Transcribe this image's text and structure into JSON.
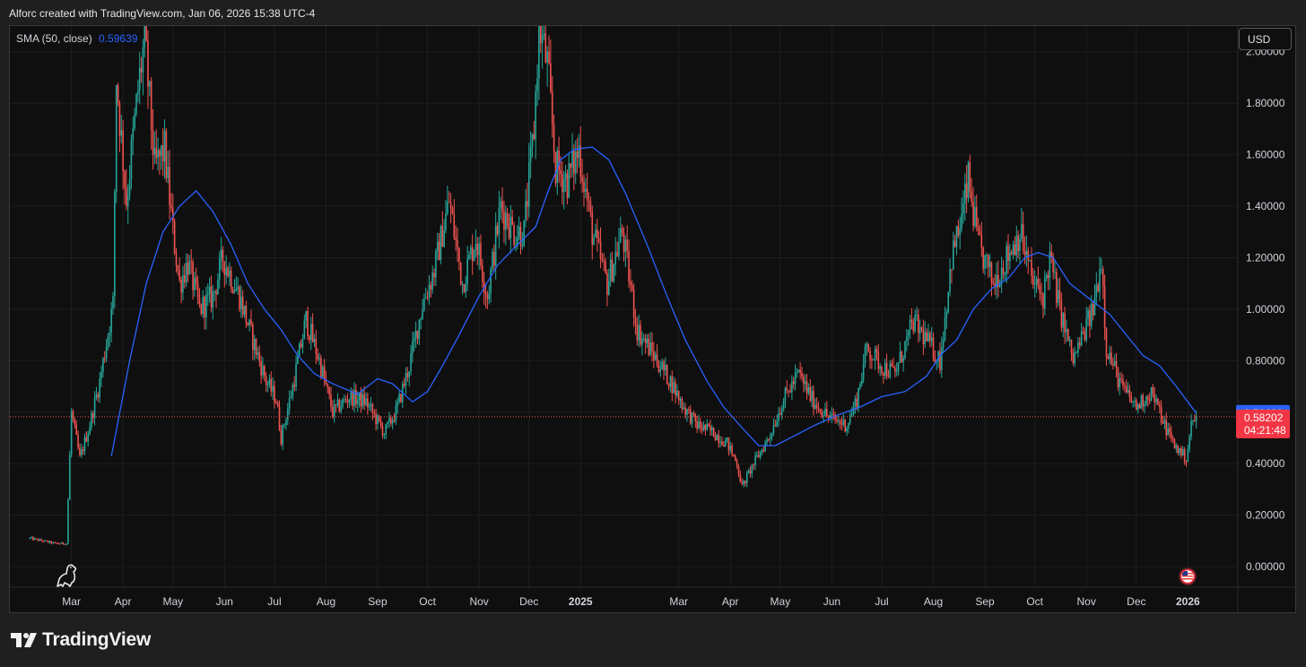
{
  "header": {
    "caption": "Alforc created with TradingView.com, Jan 06, 2026 15:38 UTC-4"
  },
  "legend": {
    "indicator": "SMA (50, close)",
    "value": "0.59639"
  },
  "currency_button": {
    "label": "USD"
  },
  "brand": {
    "name": "TradingView"
  },
  "colors": {
    "background": "#0f0f0f",
    "up_candle": "#26a69a",
    "down_candle": "#ef5350",
    "sma_line": "#2962ff",
    "price_line": "#ef5350",
    "grid": "#1e1e1e"
  },
  "chart_data": {
    "type": "line",
    "title": "",
    "indicator": "SMA (50, close)",
    "ylim": [
      -0.08,
      2.1
    ],
    "y_tick_labels": [
      "0.00000",
      "0.20000",
      "0.40000",
      "0.60000",
      "0.80000",
      "1.00000",
      "1.20000",
      "1.40000",
      "1.60000",
      "1.80000",
      "2.00000"
    ],
    "y_ticks": [
      0,
      0.2,
      0.4,
      0.6,
      0.8,
      1.0,
      1.2,
      1.4,
      1.6,
      1.8,
      2.0
    ],
    "x_tick_labels": [
      "Mar",
      "Apr",
      "May",
      "Jun",
      "Jul",
      "Aug",
      "Sep",
      "Oct",
      "Nov",
      "Dec",
      "2025",
      "Mar",
      "Apr",
      "May",
      "Jun",
      "Jul",
      "Aug",
      "Sep",
      "Oct",
      "Nov",
      "Dec",
      "2026"
    ],
    "x_tick_dates": [
      "2024-03-01",
      "2024-04-01",
      "2024-05-01",
      "2024-06-01",
      "2024-07-01",
      "2024-08-01",
      "2024-09-01",
      "2024-10-01",
      "2024-11-01",
      "2024-12-01",
      "2025-01-01",
      "2025-03-01",
      "2025-04-01",
      "2025-05-01",
      "2025-06-01",
      "2025-07-01",
      "2025-08-01",
      "2025-09-01",
      "2025-10-01",
      "2025-11-01",
      "2025-12-01",
      "2026-01-01"
    ],
    "x_range": [
      "2024-01-24",
      "2026-01-31"
    ],
    "grid": true,
    "price_series": {
      "name": "Price (close)",
      "points": [
        [
          "2024-02-05",
          0.11
        ],
        [
          "2024-02-20",
          0.09
        ],
        [
          "2024-02-27",
          0.09
        ],
        [
          "2024-03-01",
          0.6
        ],
        [
          "2024-03-06",
          0.42
        ],
        [
          "2024-03-12",
          0.55
        ],
        [
          "2024-03-18",
          0.72
        ],
        [
          "2024-03-26",
          1.02
        ],
        [
          "2024-03-28",
          1.9
        ],
        [
          "2024-04-03",
          1.42
        ],
        [
          "2024-04-10",
          1.85
        ],
        [
          "2024-04-14",
          2.05
        ],
        [
          "2024-04-20",
          1.55
        ],
        [
          "2024-04-26",
          1.62
        ],
        [
          "2024-05-01",
          1.3
        ],
        [
          "2024-05-05",
          1.1
        ],
        [
          "2024-05-10",
          1.18
        ],
        [
          "2024-05-17",
          1.0
        ],
        [
          "2024-05-25",
          1.05
        ],
        [
          "2024-05-31",
          1.2
        ],
        [
          "2024-06-10",
          1.05
        ],
        [
          "2024-06-18",
          0.88
        ],
        [
          "2024-06-26",
          0.72
        ],
        [
          "2024-07-02",
          0.65
        ],
        [
          "2024-07-05",
          0.5
        ],
        [
          "2024-07-12",
          0.7
        ],
        [
          "2024-07-20",
          0.96
        ],
        [
          "2024-07-28",
          0.8
        ],
        [
          "2024-08-05",
          0.6
        ],
        [
          "2024-08-15",
          0.66
        ],
        [
          "2024-08-25",
          0.64
        ],
        [
          "2024-09-05",
          0.52
        ],
        [
          "2024-09-12",
          0.6
        ],
        [
          "2024-09-20",
          0.78
        ],
        [
          "2024-09-28",
          1.02
        ],
        [
          "2024-10-05",
          1.15
        ],
        [
          "2024-10-14",
          1.42
        ],
        [
          "2024-10-22",
          1.1
        ],
        [
          "2024-10-30",
          1.28
        ],
        [
          "2024-11-06",
          1.05
        ],
        [
          "2024-11-14",
          1.4
        ],
        [
          "2024-11-22",
          1.3
        ],
        [
          "2024-11-28",
          1.3
        ],
        [
          "2024-12-04",
          1.7
        ],
        [
          "2024-12-07",
          2.1
        ],
        [
          "2024-12-12",
          1.95
        ],
        [
          "2024-12-17",
          1.55
        ],
        [
          "2024-12-24",
          1.5
        ],
        [
          "2024-12-31",
          1.62
        ],
        [
          "2025-01-08",
          1.3
        ],
        [
          "2025-01-17",
          1.1
        ],
        [
          "2025-01-26",
          1.3
        ],
        [
          "2025-02-04",
          0.92
        ],
        [
          "2025-02-14",
          0.82
        ],
        [
          "2025-02-24",
          0.72
        ],
        [
          "2025-03-04",
          0.62
        ],
        [
          "2025-03-12",
          0.55
        ],
        [
          "2025-03-22",
          0.52
        ],
        [
          "2025-03-30",
          0.48
        ],
        [
          "2025-04-05",
          0.4
        ],
        [
          "2025-04-08",
          0.31
        ],
        [
          "2025-04-15",
          0.4
        ],
        [
          "2025-04-24",
          0.5
        ],
        [
          "2025-05-03",
          0.65
        ],
        [
          "2025-05-12",
          0.75
        ],
        [
          "2025-05-20",
          0.65
        ],
        [
          "2025-05-30",
          0.58
        ],
        [
          "2025-06-10",
          0.55
        ],
        [
          "2025-06-16",
          0.65
        ],
        [
          "2025-06-22",
          0.85
        ],
        [
          "2025-07-01",
          0.78
        ],
        [
          "2025-07-09",
          0.75
        ],
        [
          "2025-07-20",
          0.95
        ],
        [
          "2025-07-28",
          0.88
        ],
        [
          "2025-08-05",
          0.8
        ],
        [
          "2025-08-12",
          1.2
        ],
        [
          "2025-08-18",
          1.35
        ],
        [
          "2025-08-22",
          1.5
        ],
        [
          "2025-08-28",
          1.25
        ],
        [
          "2025-09-06",
          1.1
        ],
        [
          "2025-09-14",
          1.2
        ],
        [
          "2025-09-22",
          1.3
        ],
        [
          "2025-09-30",
          1.1
        ],
        [
          "2025-10-06",
          1.05
        ],
        [
          "2025-10-10",
          1.2
        ],
        [
          "2025-10-16",
          1.0
        ],
        [
          "2025-10-24",
          0.8
        ],
        [
          "2025-10-30",
          0.9
        ],
        [
          "2025-11-05",
          1.0
        ],
        [
          "2025-11-10",
          1.2
        ],
        [
          "2025-11-13",
          0.85
        ],
        [
          "2025-11-22",
          0.7
        ],
        [
          "2025-12-01",
          0.62
        ],
        [
          "2025-12-10",
          0.68
        ],
        [
          "2025-12-18",
          0.55
        ],
        [
          "2025-12-24",
          0.47
        ],
        [
          "2025-12-31",
          0.42
        ],
        [
          "2026-01-03",
          0.55
        ],
        [
          "2026-01-06",
          0.58202
        ]
      ]
    },
    "series": [
      {
        "name": "SMA (50, close)",
        "points": [
          [
            "2024-03-25",
            0.43
          ],
          [
            "2024-04-05",
            0.8
          ],
          [
            "2024-04-15",
            1.1
          ],
          [
            "2024-04-25",
            1.3
          ],
          [
            "2024-05-05",
            1.4
          ],
          [
            "2024-05-15",
            1.46
          ],
          [
            "2024-05-25",
            1.38
          ],
          [
            "2024-06-05",
            1.25
          ],
          [
            "2024-06-15",
            1.1
          ],
          [
            "2024-06-25",
            1.0
          ],
          [
            "2024-07-05",
            0.92
          ],
          [
            "2024-07-15",
            0.82
          ],
          [
            "2024-07-25",
            0.75
          ],
          [
            "2024-08-05",
            0.71
          ],
          [
            "2024-08-20",
            0.67
          ],
          [
            "2024-09-01",
            0.73
          ],
          [
            "2024-09-10",
            0.71
          ],
          [
            "2024-09-22",
            0.64
          ],
          [
            "2024-10-01",
            0.68
          ],
          [
            "2024-10-10",
            0.78
          ],
          [
            "2024-10-20",
            0.9
          ],
          [
            "2024-11-01",
            1.05
          ],
          [
            "2024-11-12",
            1.17
          ],
          [
            "2024-11-24",
            1.25
          ],
          [
            "2024-12-05",
            1.32
          ],
          [
            "2024-12-12",
            1.45
          ],
          [
            "2024-12-20",
            1.58
          ],
          [
            "2024-12-28",
            1.62
          ],
          [
            "2025-01-08",
            1.63
          ],
          [
            "2025-01-18",
            1.58
          ],
          [
            "2025-01-28",
            1.45
          ],
          [
            "2025-02-10",
            1.25
          ],
          [
            "2025-02-22",
            1.05
          ],
          [
            "2025-03-05",
            0.88
          ],
          [
            "2025-03-18",
            0.72
          ],
          [
            "2025-03-28",
            0.62
          ],
          [
            "2025-04-08",
            0.54
          ],
          [
            "2025-04-18",
            0.47
          ],
          [
            "2025-04-28",
            0.47
          ],
          [
            "2025-05-10",
            0.51
          ],
          [
            "2025-05-22",
            0.55
          ],
          [
            "2025-06-05",
            0.59
          ],
          [
            "2025-06-18",
            0.62
          ],
          [
            "2025-07-01",
            0.66
          ],
          [
            "2025-07-15",
            0.68
          ],
          [
            "2025-07-28",
            0.74
          ],
          [
            "2025-08-05",
            0.82
          ],
          [
            "2025-08-15",
            0.88
          ],
          [
            "2025-08-25",
            1.0
          ],
          [
            "2025-09-05",
            1.08
          ],
          [
            "2025-09-15",
            1.12
          ],
          [
            "2025-09-25",
            1.2
          ],
          [
            "2025-10-03",
            1.22
          ],
          [
            "2025-10-12",
            1.2
          ],
          [
            "2025-10-22",
            1.1
          ],
          [
            "2025-11-05",
            1.03
          ],
          [
            "2025-11-15",
            0.98
          ],
          [
            "2025-11-25",
            0.9
          ],
          [
            "2025-12-05",
            0.82
          ],
          [
            "2025-12-15",
            0.78
          ],
          [
            "2025-12-25",
            0.7
          ],
          [
            "2026-01-06",
            0.59639
          ]
        ]
      }
    ],
    "price_labels": [
      {
        "name": "SMA (50, close)",
        "value": 0.59639,
        "text": "0.59639",
        "color": "#2962ff"
      },
      {
        "name": "Last price",
        "value": 0.58202,
        "text": "0.58202",
        "subtext": "04:21:48",
        "color": "#f23645"
      }
    ]
  }
}
